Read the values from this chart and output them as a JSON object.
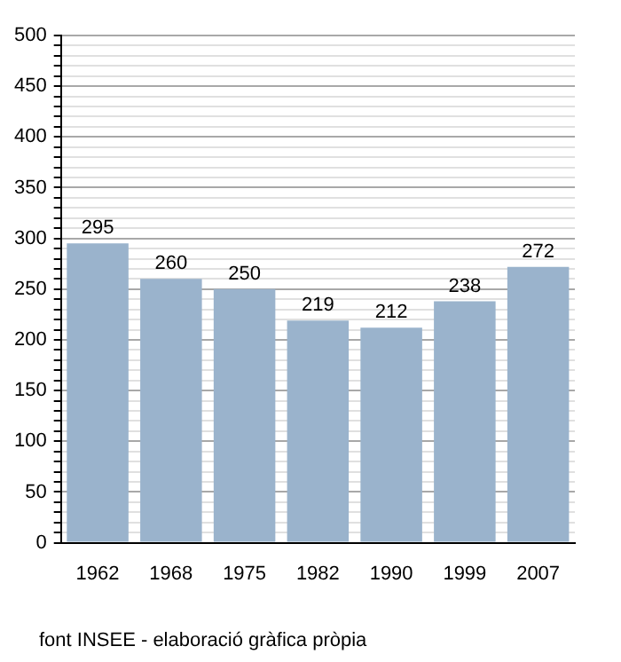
{
  "chart_data": {
    "type": "bar",
    "categories": [
      "1962",
      "1968",
      "1975",
      "1982",
      "1990",
      "1999",
      "2007"
    ],
    "values": [
      295,
      260,
      250,
      219,
      212,
      238,
      272
    ],
    "color": "#9ab3cc",
    "data_labels": true,
    "ylim": [
      0,
      500
    ],
    "yticks": [
      0,
      {
        "value": 10,
        "label": null
      },
      {
        "value": 20,
        "label": null
      },
      {
        "value": 30,
        "label": null
      },
      {
        "value": 40,
        "label": null
      },
      50,
      {
        "value": 60,
        "label": null
      },
      {
        "value": 70,
        "label": null
      },
      {
        "value": 80,
        "label": null
      },
      {
        "value": 90,
        "label": null
      },
      100,
      {
        "value": 110,
        "label": null
      },
      {
        "value": 120,
        "label": null
      },
      {
        "value": 130,
        "label": null
      },
      {
        "value": 140,
        "label": null
      },
      150,
      {
        "value": 160,
        "label": null
      },
      {
        "value": 170,
        "label": null
      },
      {
        "value": 180,
        "label": null
      },
      {
        "value": 190,
        "label": null
      },
      200,
      {
        "value": 210,
        "label": null
      },
      {
        "value": 220,
        "label": null
      },
      {
        "value": 230,
        "label": null
      },
      {
        "value": 240,
        "label": null
      },
      250,
      {
        "value": 260,
        "label": null
      },
      {
        "value": 270,
        "label": null
      },
      {
        "value": 280,
        "label": null
      },
      {
        "value": 290,
        "label": null
      },
      300,
      {
        "value": 310,
        "label": null
      },
      {
        "value": 320,
        "label": null
      },
      {
        "value": 330,
        "label": null
      },
      {
        "value": 340,
        "label": null
      },
      350,
      {
        "value": 360,
        "label": null
      },
      {
        "value": 370,
        "label": null
      },
      {
        "value": 380,
        "label": null
      },
      {
        "value": 390,
        "label": null
      },
      400,
      {
        "value": 410,
        "label": null
      },
      {
        "value": 420,
        "label": null
      },
      {
        "value": 430,
        "label": null
      },
      {
        "value": 440,
        "label": null
      },
      450,
      {
        "value": 460,
        "label": null
      },
      {
        "value": 470,
        "label": null
      },
      {
        "value": 480,
        "label": null
      },
      {
        "value": 490,
        "label": null
      },
      500
    ],
    "grid": "y",
    "annotations": [
      "font INSEE - elaboració gràfica pròpia"
    ]
  }
}
